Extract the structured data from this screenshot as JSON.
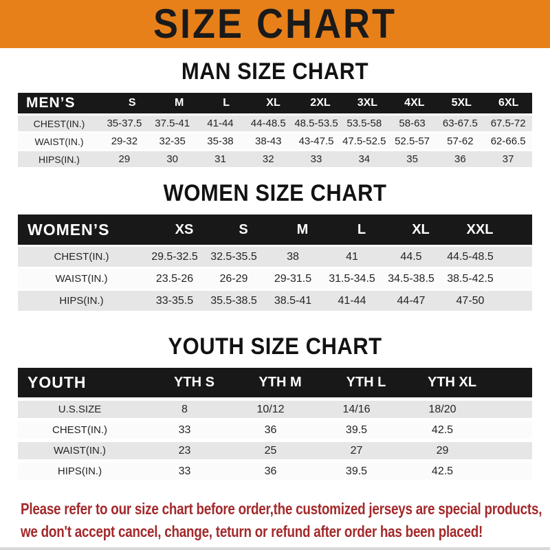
{
  "banner": {
    "title": "SIZE CHART"
  },
  "chart_data": [
    {
      "type": "table",
      "title": "MAN SIZE CHART",
      "row_header": "MEN’S",
      "columns": [
        "S",
        "M",
        "L",
        "XL",
        "2XL",
        "3XL",
        "4XL",
        "5XL",
        "6XL"
      ],
      "rows": [
        {
          "label": "CHEST(IN.)",
          "values": [
            "35-37.5",
            "37.5-41",
            "41-44",
            "44-48.5",
            "48.5-53.5",
            "53.5-58",
            "58-63",
            "63-67.5",
            "67.5-72"
          ]
        },
        {
          "label": "WAIST(IN.)",
          "values": [
            "29-32",
            "32-35",
            "35-38",
            "38-43",
            "43-47.5",
            "47.5-52.5",
            "52.5-57",
            "57-62",
            "62-66.5"
          ]
        },
        {
          "label": "HIPS(IN.)",
          "values": [
            "29",
            "30",
            "31",
            "32",
            "33",
            "34",
            "35",
            "36",
            "37"
          ]
        }
      ]
    },
    {
      "type": "table",
      "title": "WOMEN SIZE CHART",
      "row_header": "WOMEN’S",
      "columns": [
        "XS",
        "S",
        "M",
        "L",
        "XL",
        "XXL"
      ],
      "rows": [
        {
          "label": "CHEST(IN.)",
          "values": [
            "29.5-32.5",
            "32.5-35.5",
            "38",
            "41",
            "44.5",
            "44.5-48.5"
          ]
        },
        {
          "label": "WAIST(IN.)",
          "values": [
            "23.5-26",
            "26-29",
            "29-31.5",
            "31.5-34.5",
            "34.5-38.5",
            "38.5-42.5"
          ]
        },
        {
          "label": "HIPS(IN.)",
          "values": [
            "33-35.5",
            "35.5-38.5",
            "38.5-41",
            "41-44",
            "44-47",
            "47-50"
          ]
        }
      ]
    },
    {
      "type": "table",
      "title": "YOUTH SIZE CHART",
      "row_header": "YOUTH",
      "columns": [
        "YTH S",
        "YTH M",
        "YTH L",
        "YTH XL"
      ],
      "rows": [
        {
          "label": "U.S.SIZE",
          "values": [
            "8",
            "10/12",
            "14/16",
            "18/20"
          ]
        },
        {
          "label": "CHEST(IN.)",
          "values": [
            "33",
            "36",
            "39.5",
            "42.5"
          ]
        },
        {
          "label": "WAIST(IN.)",
          "values": [
            "23",
            "25",
            "27",
            "29"
          ]
        },
        {
          "label": "HIPS(IN.)",
          "values": [
            "33",
            "36",
            "39.5",
            "42.5"
          ]
        }
      ]
    }
  ],
  "footer": {
    "line1": "Please refer to our size chart before order,the customized jerseys are special products,",
    "line2": "we don't accept cancel, change, teturn or refund after order has been placed!"
  },
  "colors": {
    "banner_bg": "#E8801A",
    "banner_text": "#1A1A1A",
    "table_header_bg": "#181818",
    "table_header_text": "#FFFFFF",
    "row_shade": "#E6E6E6",
    "row_light": "#FBFBFB",
    "body_text": "#242424",
    "notice_text": "#A3292B"
  }
}
